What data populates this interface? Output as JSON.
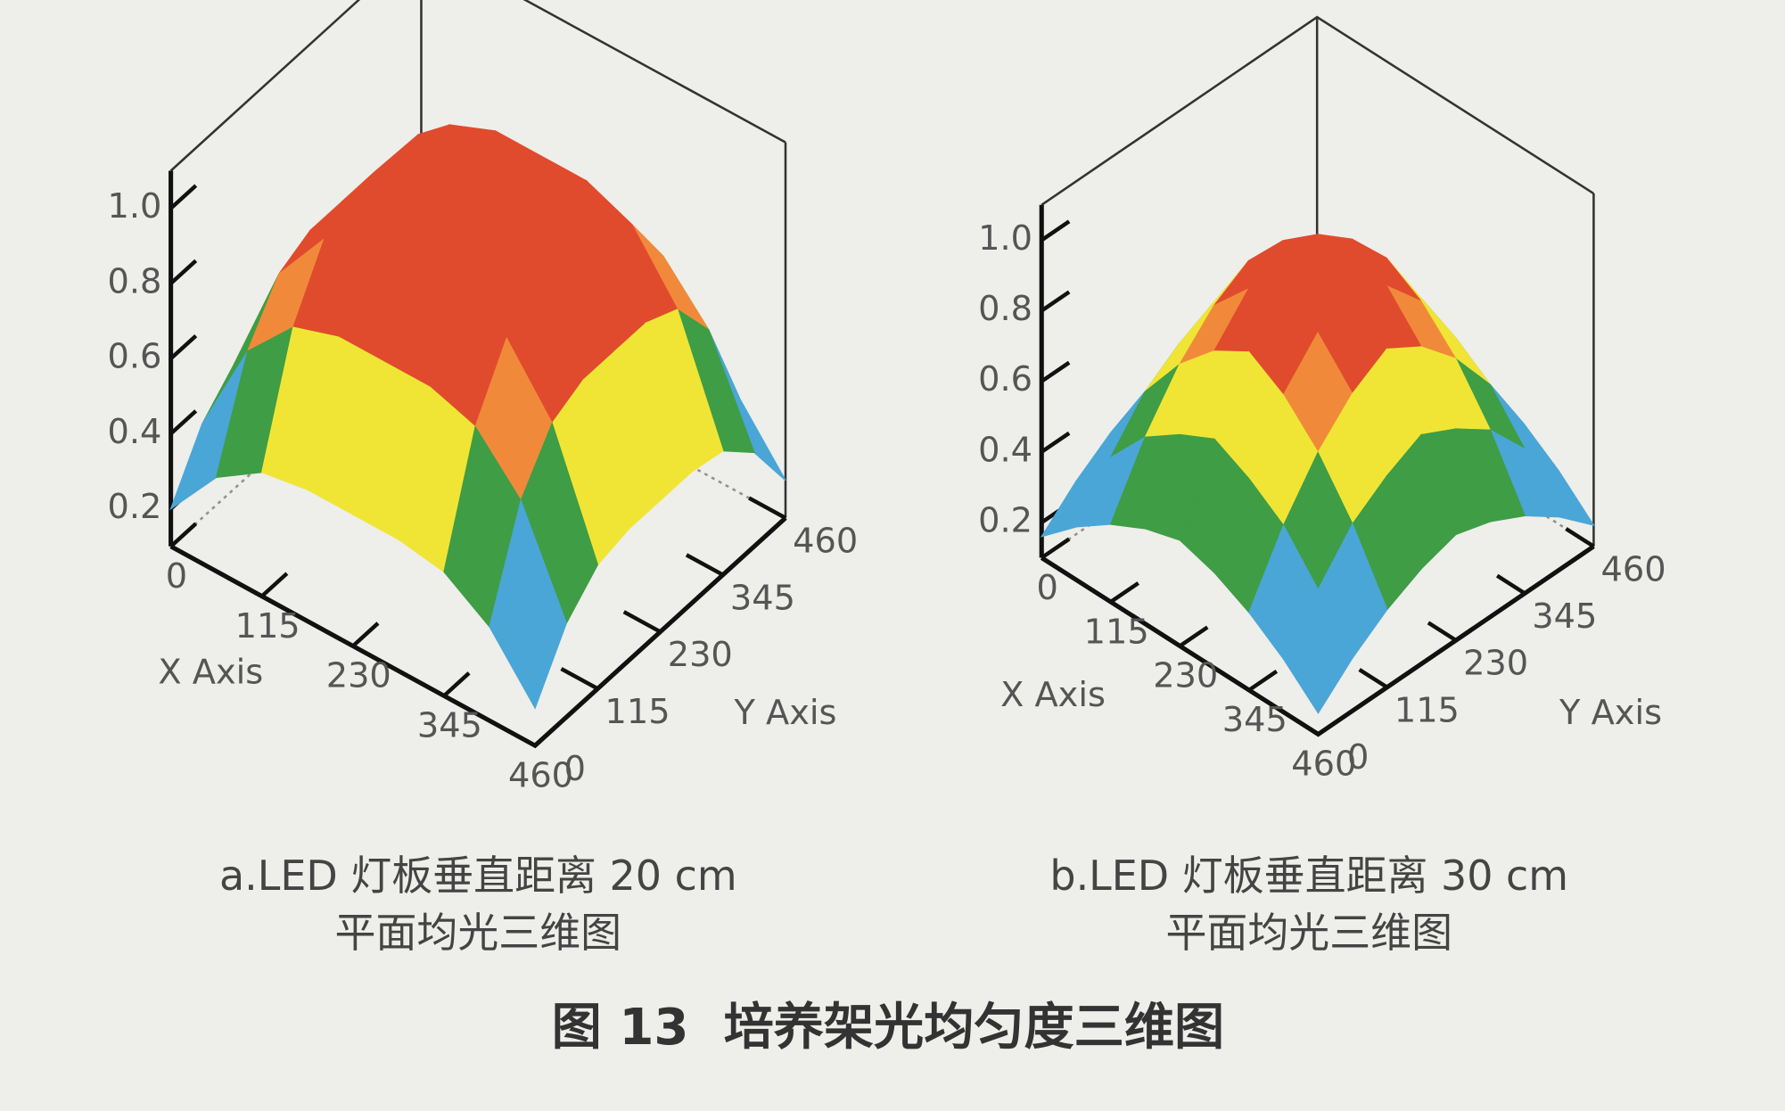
{
  "chart_data": [
    {
      "type": "surface",
      "xlabel": "X Axis",
      "ylabel": "Y Axis",
      "caption": [
        "a.LED 灯板垂直距离 20 cm",
        "平面均光三维图"
      ],
      "x": [
        0,
        57.5,
        115,
        172.5,
        230,
        287.5,
        345,
        402.5,
        460
      ],
      "y": [
        0,
        57.5,
        115,
        172.5,
        230,
        287.5,
        345,
        402.5,
        460
      ],
      "z": [
        [
          0.2,
          0.35,
          0.43,
          0.45,
          0.45,
          0.45,
          0.43,
          0.35,
          0.2
        ],
        [
          0.35,
          0.61,
          0.74,
          0.78,
          0.78,
          0.78,
          0.74,
          0.61,
          0.35
        ],
        [
          0.43,
          0.74,
          0.9,
          0.95,
          0.95,
          0.95,
          0.9,
          0.74,
          0.43
        ],
        [
          0.45,
          0.78,
          0.95,
          1,
          1,
          1,
          0.95,
          0.78,
          0.45
        ],
        [
          0.45,
          0.78,
          0.95,
          1,
          1,
          1,
          0.95,
          0.78,
          0.45
        ],
        [
          0.45,
          0.78,
          0.95,
          1,
          1,
          1,
          0.95,
          0.78,
          0.45
        ],
        [
          0.43,
          0.74,
          0.9,
          0.95,
          0.95,
          0.95,
          0.9,
          0.74,
          0.43
        ],
        [
          0.35,
          0.61,
          0.74,
          0.78,
          0.78,
          0.78,
          0.74,
          0.61,
          0.35
        ],
        [
          0.2,
          0.35,
          0.43,
          0.45,
          0.45,
          0.45,
          0.43,
          0.35,
          0.2
        ]
      ],
      "xlim": [
        0,
        460
      ],
      "ylim": [
        0,
        460
      ],
      "zlim": [
        0.1,
        1.1
      ],
      "xticks": [
        0,
        115,
        230,
        345,
        460
      ],
      "yticks": [
        0,
        115,
        230,
        345,
        460
      ],
      "zticks": [
        0.2,
        0.4,
        0.6,
        0.8,
        {
          "value": 1,
          "label": "1.0"
        }
      ],
      "color_levels": [
        0.22,
        0.4,
        0.6,
        0.7,
        0.8
      ],
      "colors": [
        "#1c3f9e",
        "#4aa6d6",
        "#3f9d45",
        "#f0e535",
        "#f08a3a",
        "#e04b2e"
      ]
    },
    {
      "type": "surface",
      "xlabel": "X Axis",
      "ylabel": "Y Axis",
      "caption": [
        "b.LED 灯板垂直距离 30 cm",
        "平面均光三维图"
      ],
      "x": [
        0,
        57.5,
        115,
        172.5,
        230,
        287.5,
        345,
        402.5,
        460
      ],
      "y": [
        0,
        57.5,
        115,
        172.5,
        230,
        287.5,
        345,
        402.5,
        460
      ],
      "z": [
        [
          0.16,
          0.25,
          0.32,
          0.37,
          0.4,
          0.37,
          0.32,
          0.25,
          0.16
        ],
        [
          0.25,
          0.38,
          0.5,
          0.57,
          0.62,
          0.57,
          0.5,
          0.38,
          0.25
        ],
        [
          0.32,
          0.5,
          0.64,
          0.74,
          0.8,
          0.74,
          0.64,
          0.5,
          0.32
        ],
        [
          0.37,
          0.57,
          0.74,
          0.85,
          0.92,
          0.85,
          0.74,
          0.57,
          0.37
        ],
        [
          0.4,
          0.62,
          0.8,
          0.92,
          1,
          0.92,
          0.8,
          0.62,
          0.4
        ],
        [
          0.37,
          0.57,
          0.74,
          0.85,
          0.92,
          0.85,
          0.74,
          0.57,
          0.37
        ],
        [
          0.32,
          0.5,
          0.64,
          0.74,
          0.8,
          0.74,
          0.64,
          0.5,
          0.32
        ],
        [
          0.25,
          0.38,
          0.5,
          0.57,
          0.62,
          0.57,
          0.5,
          0.38,
          0.25
        ],
        [
          0.16,
          0.25,
          0.32,
          0.37,
          0.4,
          0.37,
          0.32,
          0.25,
          0.16
        ]
      ],
      "xlim": [
        0,
        460
      ],
      "ylim": [
        0,
        460
      ],
      "zlim": [
        0.1,
        1.1
      ],
      "xticks": [
        0,
        115,
        230,
        345,
        460
      ],
      "yticks": [
        0,
        115,
        230,
        345,
        460
      ],
      "zticks": [
        0.2,
        0.4,
        0.6,
        0.8,
        {
          "value": 1,
          "label": "1.0"
        }
      ],
      "color_levels": [
        0.22,
        0.4,
        0.6,
        0.7,
        0.8
      ],
      "colors": [
        "#1c3f9e",
        "#4aa6d6",
        "#3f9d45",
        "#f0e535",
        "#f08a3a",
        "#e04b2e"
      ]
    }
  ],
  "figure_caption": "图 13  培养架光均匀度三维图"
}
